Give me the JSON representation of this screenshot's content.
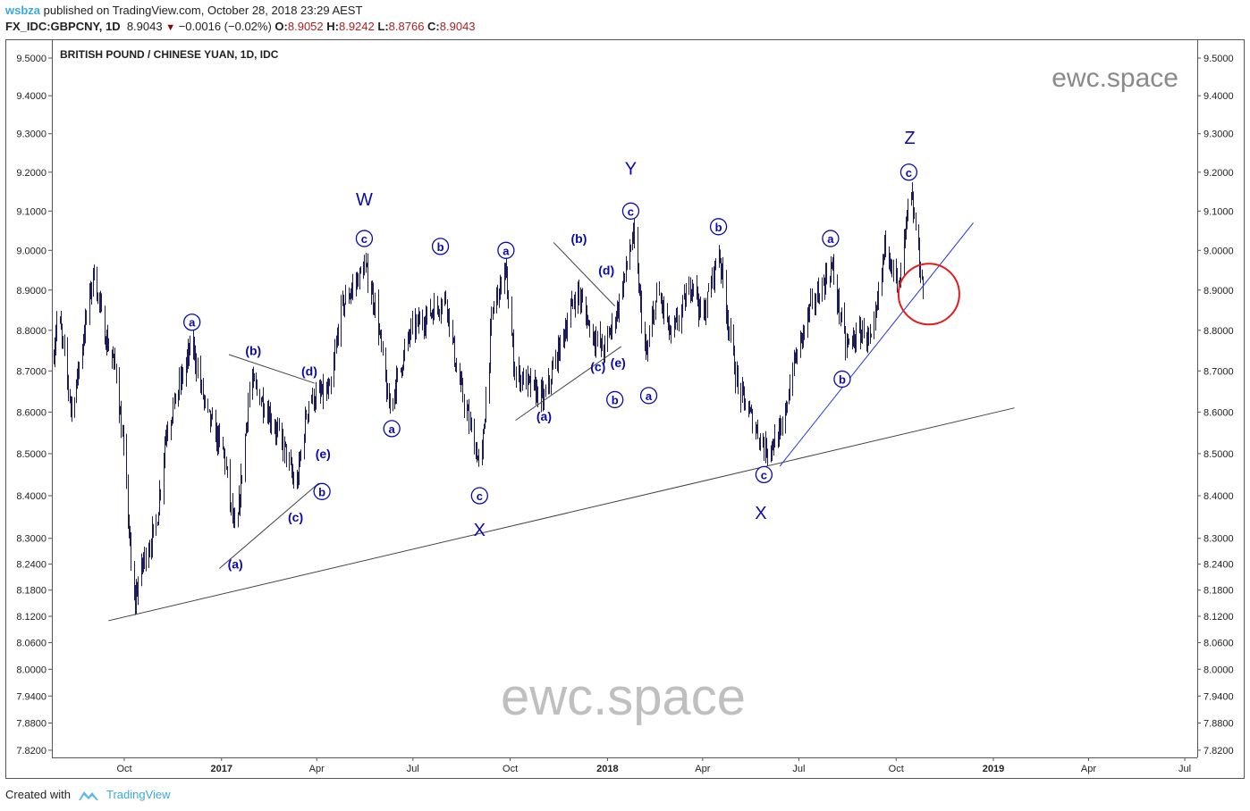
{
  "header": {
    "author": "wsbza",
    "published": "published on TradingView.com, October 28, 2018 23:29 AEST",
    "symbol": "FX_IDC:GBPCNY, 1D",
    "last": "8.9043",
    "change": "−0.0016 (−0.02%)",
    "o_label": "O:",
    "o": "8.9052",
    "h_label": "H:",
    "h": "8.9242",
    "l_label": "L:",
    "l": "8.8766",
    "c_label": "C:",
    "c": "8.9043"
  },
  "footer": {
    "created_with": "Created with",
    "brand": "TradingView"
  },
  "colors": {
    "bars": "#1c1c5c",
    "wave_labels": "#0a0aa8",
    "trend_blue": "#2233dd",
    "trend_black": "#444444",
    "circle": "#e31b1b",
    "watermark": "#8a8a8a"
  },
  "chart_data": {
    "type": "ohlc",
    "title": "BRITISH POUND / CHINESE YUAN, 1D, IDC",
    "watermark": "ewc.space",
    "scale": "log",
    "ylim": [
      7.82,
      9.5
    ],
    "y_ticks": [
      "9.5000",
      "9.4000",
      "9.3000",
      "9.2000",
      "9.1000",
      "9.0000",
      "8.9000",
      "8.8000",
      "8.7000",
      "8.6000",
      "8.5000",
      "8.4000",
      "8.3000",
      "8.2400",
      "8.1800",
      "8.1200",
      "8.0600",
      "8.0000",
      "7.9400",
      "7.8800",
      "7.8200"
    ],
    "x_ticks": [
      {
        "label": "Oct",
        "date": "2016-10-01",
        "bold": false
      },
      {
        "label": "2017",
        "date": "2017-01-01",
        "bold": true
      },
      {
        "label": "Apr",
        "date": "2017-04-01",
        "bold": false
      },
      {
        "label": "Jul",
        "date": "2017-07-01",
        "bold": false
      },
      {
        "label": "Oct",
        "date": "2017-10-01",
        "bold": false
      },
      {
        "label": "2018",
        "date": "2018-01-01",
        "bold": true
      },
      {
        "label": "Apr",
        "date": "2018-04-01",
        "bold": false
      },
      {
        "label": "Jul",
        "date": "2018-07-01",
        "bold": false
      },
      {
        "label": "Oct",
        "date": "2018-10-01",
        "bold": false
      },
      {
        "label": "2019",
        "date": "2019-01-01",
        "bold": true
      },
      {
        "label": "Apr",
        "date": "2019-04-01",
        "bold": false
      },
      {
        "label": "Jul",
        "date": "2019-07-01",
        "bold": false
      }
    ],
    "price_path": [
      [
        "2016-07-26",
        8.75
      ],
      [
        "2016-07-30",
        8.85
      ],
      [
        "2016-08-12",
        8.6
      ],
      [
        "2016-09-02",
        8.95
      ],
      [
        "2016-09-11",
        8.8
      ],
      [
        "2016-09-23",
        8.7
      ],
      [
        "2016-10-02",
        8.45
      ],
      [
        "2016-10-09",
        8.14
      ],
      [
        "2016-10-19",
        8.25
      ],
      [
        "2016-10-31",
        8.33
      ],
      [
        "2016-11-09",
        8.55
      ],
      [
        "2016-12-04",
        8.77
      ],
      [
        "2016-12-17",
        8.6
      ],
      [
        "2017-01-03",
        8.5
      ],
      [
        "2017-01-14",
        8.29
      ],
      [
        "2017-01-28",
        8.68
      ],
      [
        "2017-02-14",
        8.6
      ],
      [
        "2017-03-03",
        8.5
      ],
      [
        "2017-03-12",
        8.41
      ],
      [
        "2017-03-24",
        8.63
      ],
      [
        "2017-04-14",
        8.65
      ],
      [
        "2017-04-23",
        8.85
      ],
      [
        "2017-05-16",
        8.96
      ],
      [
        "2017-05-27",
        8.85
      ],
      [
        "2017-06-08",
        8.61
      ],
      [
        "2017-06-29",
        8.8
      ],
      [
        "2017-08-01",
        8.88
      ],
      [
        "2017-08-11",
        8.7
      ],
      [
        "2017-09-03",
        8.46
      ],
      [
        "2017-09-14",
        8.85
      ],
      [
        "2017-09-26",
        8.95
      ],
      [
        "2017-10-05",
        8.7
      ],
      [
        "2017-11-02",
        8.63
      ],
      [
        "2017-11-12",
        8.72
      ],
      [
        "2017-12-03",
        8.9
      ],
      [
        "2017-12-16",
        8.8
      ],
      [
        "2017-12-28",
        8.75
      ],
      [
        "2018-01-10",
        8.85
      ],
      [
        "2018-01-25",
        9.04
      ],
      [
        "2018-02-06",
        8.73
      ],
      [
        "2018-02-17",
        8.9
      ],
      [
        "2018-03-02",
        8.78
      ],
      [
        "2018-03-23",
        8.93
      ],
      [
        "2018-03-31",
        8.82
      ],
      [
        "2018-04-16",
        9.0
      ],
      [
        "2018-04-26",
        8.8
      ],
      [
        "2018-05-04",
        8.66
      ],
      [
        "2018-05-30",
        8.51
      ],
      [
        "2018-06-15",
        8.55
      ],
      [
        "2018-06-24",
        8.7
      ],
      [
        "2018-07-11",
        8.85
      ],
      [
        "2018-08-01",
        8.96
      ],
      [
        "2018-08-14",
        8.76
      ],
      [
        "2018-08-31",
        8.8
      ],
      [
        "2018-09-08",
        8.76
      ],
      [
        "2018-09-21",
        9.03
      ],
      [
        "2018-10-03",
        8.9
      ],
      [
        "2018-10-14",
        9.15
      ],
      [
        "2018-10-20",
        9.04
      ],
      [
        "2018-10-26",
        8.9
      ]
    ],
    "wave_labels": [
      {
        "text": "W",
        "date": "2017-05-16",
        "price": 9.13,
        "style": "big"
      },
      {
        "text": "Y",
        "date": "2018-01-23",
        "price": 9.21,
        "style": "big"
      },
      {
        "text": "Z",
        "date": "2018-10-14",
        "price": 9.29,
        "style": "big"
      },
      {
        "text": "X",
        "date": "2017-09-02",
        "price": 8.32,
        "style": "big"
      },
      {
        "text": "X",
        "date": "2018-05-26",
        "price": 8.36,
        "style": "big"
      },
      {
        "text": "a",
        "date": "2016-12-04",
        "price": 8.82,
        "style": "circle"
      },
      {
        "text": "c",
        "date": "2017-05-16",
        "price": 9.03,
        "style": "circle"
      },
      {
        "text": "b",
        "date": "2017-07-27",
        "price": 9.01,
        "style": "circle"
      },
      {
        "text": "a",
        "date": "2017-06-11",
        "price": 8.56,
        "style": "circle"
      },
      {
        "text": "c",
        "date": "2017-09-02",
        "price": 8.4,
        "style": "circle"
      },
      {
        "text": "a",
        "date": "2017-09-27",
        "price": 9.0,
        "style": "circle"
      },
      {
        "text": "c",
        "date": "2018-01-23",
        "price": 9.1,
        "style": "circle"
      },
      {
        "text": "b",
        "date": "2018-01-08",
        "price": 8.63,
        "style": "circle"
      },
      {
        "text": "a",
        "date": "2018-02-09",
        "price": 8.64,
        "style": "circle"
      },
      {
        "text": "b",
        "date": "2018-04-16",
        "price": 9.06,
        "style": "circle"
      },
      {
        "text": "c",
        "date": "2018-05-29",
        "price": 8.45,
        "style": "circle"
      },
      {
        "text": "a",
        "date": "2018-07-31",
        "price": 9.03,
        "style": "circle"
      },
      {
        "text": "b",
        "date": "2018-08-11",
        "price": 8.68,
        "style": "circle"
      },
      {
        "text": "c",
        "date": "2018-10-13",
        "price": 9.2,
        "style": "circle"
      },
      {
        "text": "b",
        "date": "2017-04-06",
        "price": 8.41,
        "style": "circle"
      },
      {
        "text": "(b)",
        "date": "2017-01-31",
        "price": 8.75,
        "style": "paren"
      },
      {
        "text": "(d)",
        "date": "2017-03-25",
        "price": 8.7,
        "style": "paren"
      },
      {
        "text": "(e)",
        "date": "2017-04-07",
        "price": 8.5,
        "style": "paren"
      },
      {
        "text": "(c)",
        "date": "2017-03-12",
        "price": 8.35,
        "style": "paren"
      },
      {
        "text": "(a)",
        "date": "2017-01-14",
        "price": 8.24,
        "style": "paren"
      },
      {
        "text": "(b)",
        "date": "2017-12-05",
        "price": 9.03,
        "style": "paren"
      },
      {
        "text": "(d)",
        "date": "2017-12-31",
        "price": 8.95,
        "style": "paren"
      },
      {
        "text": "(c)",
        "date": "2017-12-23",
        "price": 8.71,
        "style": "paren"
      },
      {
        "text": "(e)",
        "date": "2018-01-11",
        "price": 8.72,
        "style": "paren"
      },
      {
        "text": "(a)",
        "date": "2017-11-02",
        "price": 8.59,
        "style": "paren"
      }
    ],
    "trend_lines": [
      {
        "name": "long-support",
        "color": "black",
        "from": [
          "2016-09-16",
          8.11
        ],
        "to": [
          "2019-01-21",
          8.61
        ]
      },
      {
        "name": "rising-support",
        "color": "blue",
        "from": [
          "2018-06-13",
          8.47
        ],
        "to": [
          "2018-12-13",
          9.07
        ]
      },
      {
        "name": "triangle1-upper",
        "color": "black",
        "from": [
          "2017-01-08",
          8.74
        ],
        "to": [
          "2017-03-30",
          8.67
        ]
      },
      {
        "name": "triangle1-lower",
        "color": "black",
        "from": [
          "2016-12-30",
          8.23
        ],
        "to": [
          "2017-04-03",
          8.43
        ]
      },
      {
        "name": "triangle2-upper",
        "color": "black",
        "from": [
          "2017-11-11",
          9.02
        ],
        "to": [
          "2018-01-08",
          8.86
        ]
      },
      {
        "name": "triangle2-lower",
        "color": "black",
        "from": [
          "2017-10-06",
          8.58
        ],
        "to": [
          "2018-01-14",
          8.76
        ]
      }
    ],
    "highlight_circle": {
      "date": "2018-11-01",
      "price": 8.89
    }
  }
}
